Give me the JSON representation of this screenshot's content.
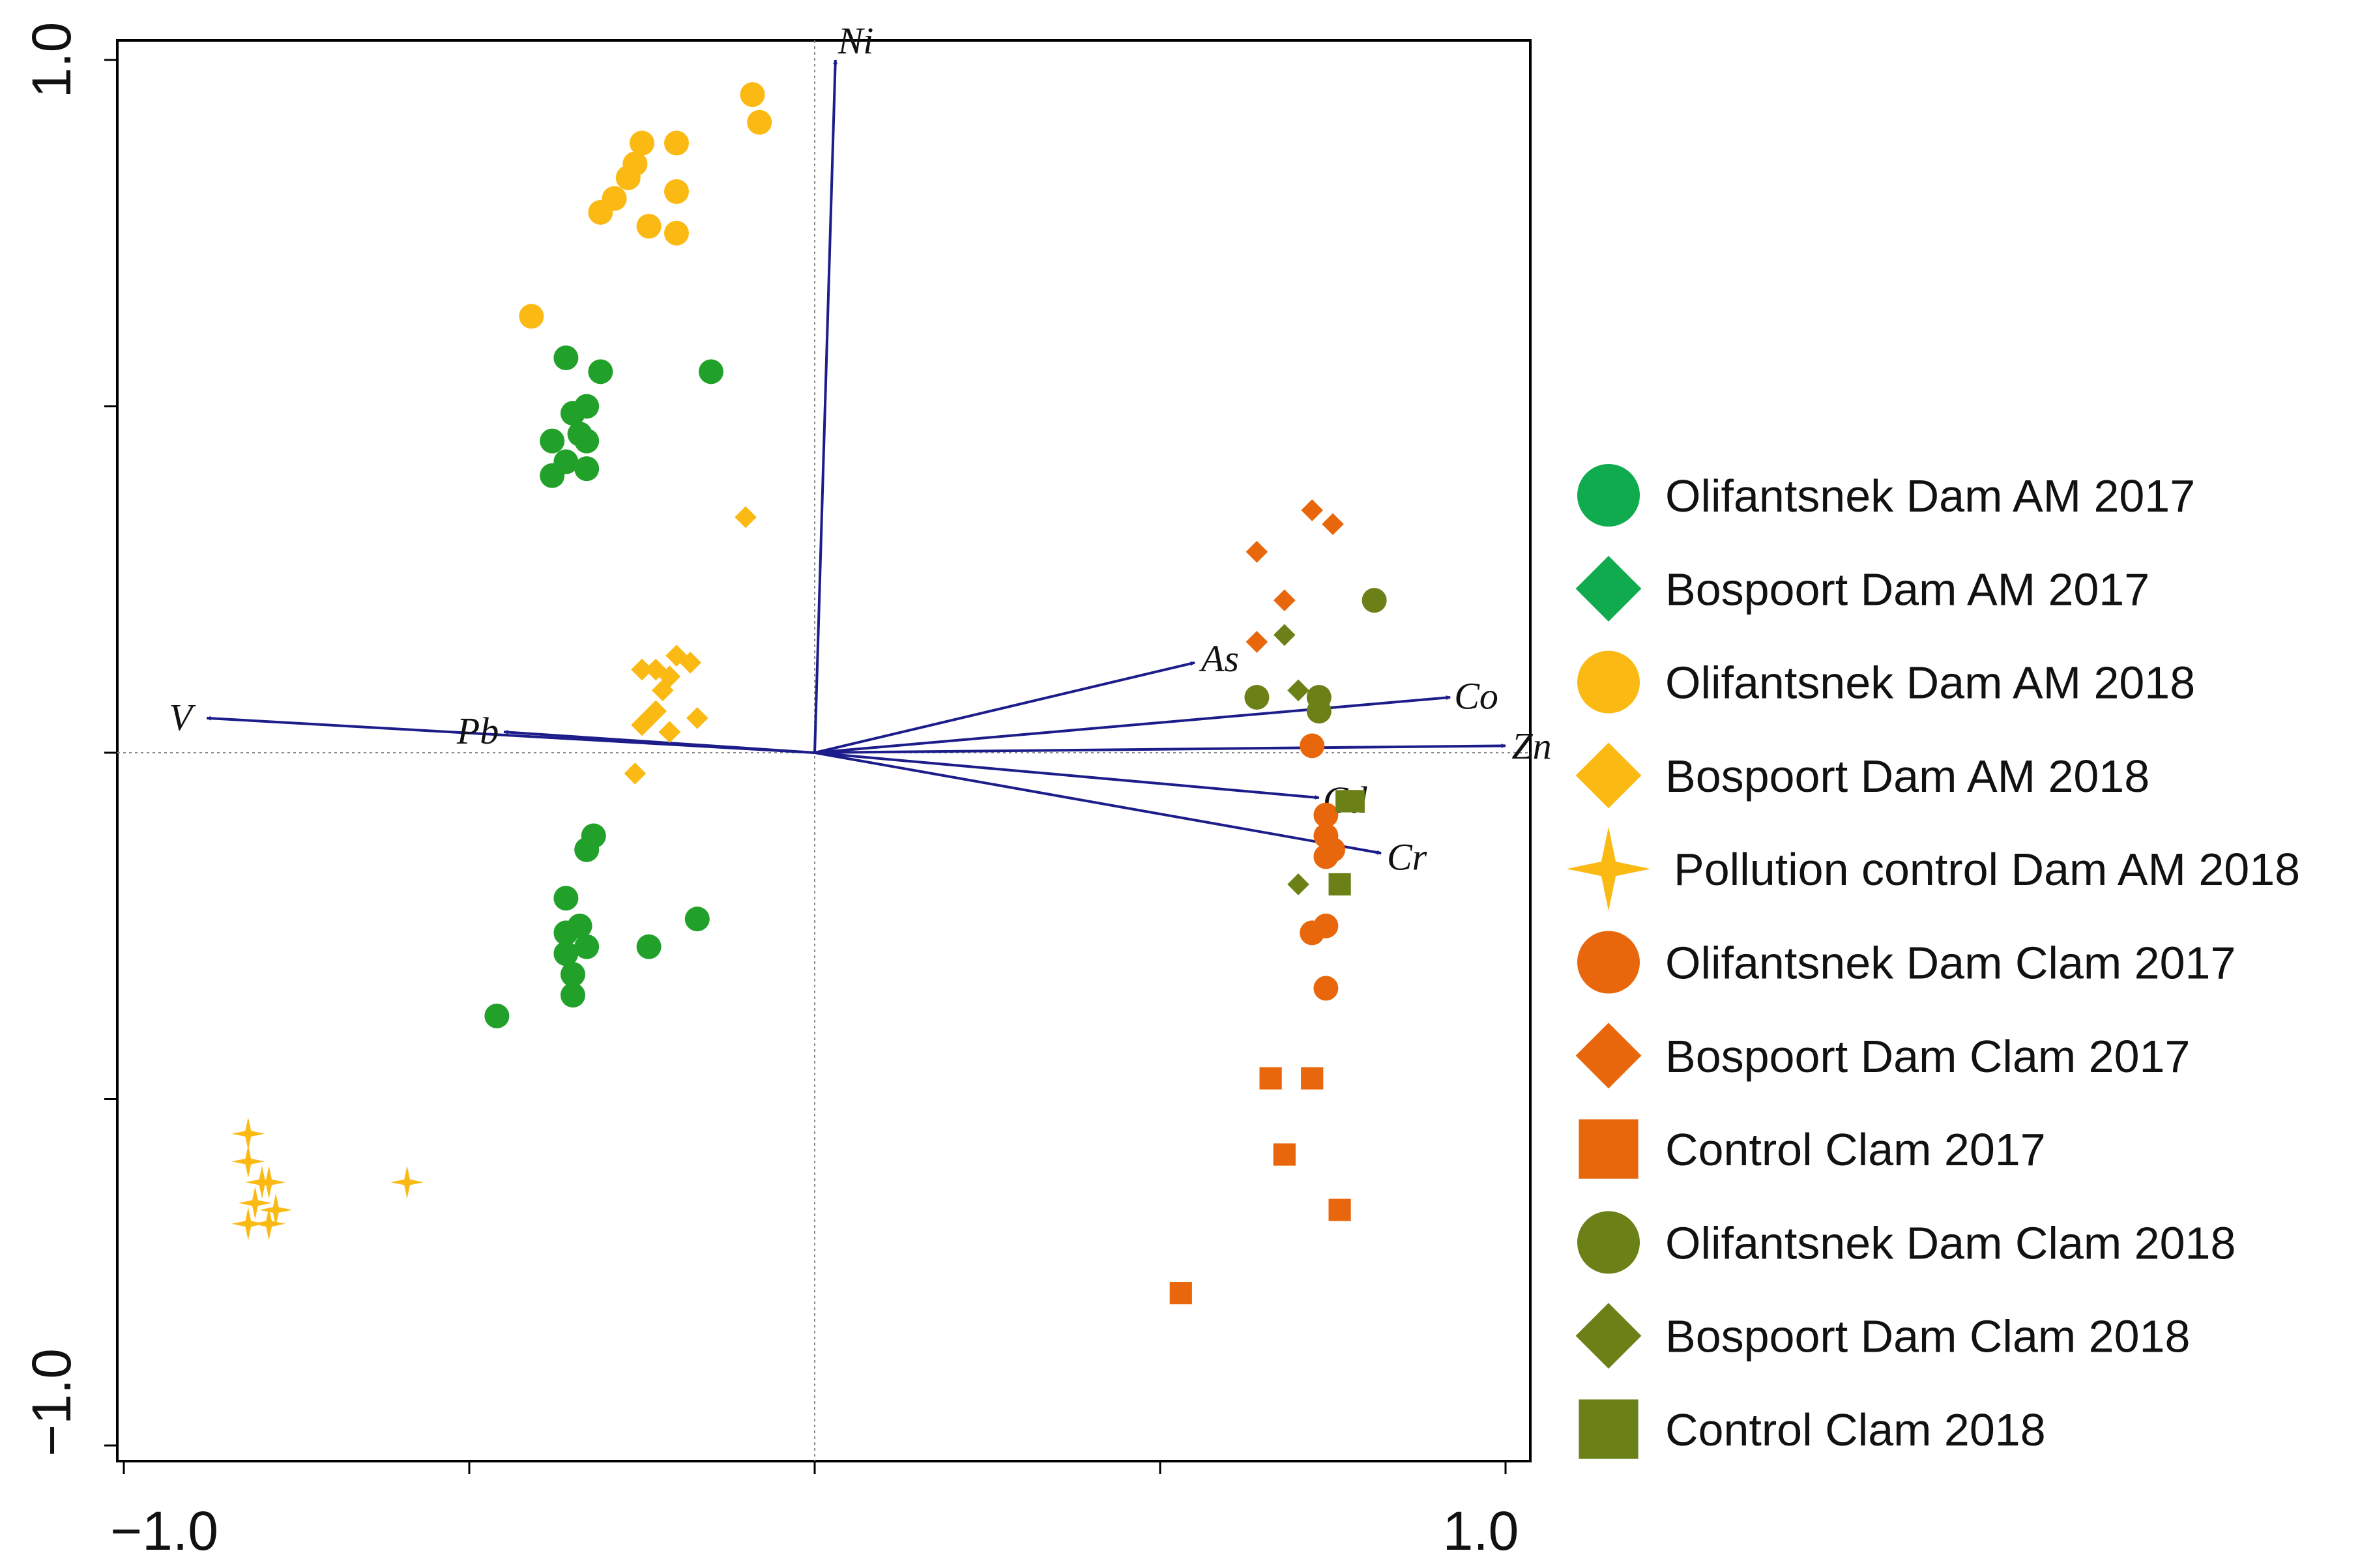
{
  "chart_data": {
    "type": "scatter",
    "title": "",
    "xlabel": "",
    "ylabel": "",
    "xlim": [
      -1.0,
      1.0
    ],
    "ylim": [
      -1.0,
      1.0
    ],
    "x_tick_labels": [
      "−1.0",
      "1.0"
    ],
    "y_tick_labels": [
      "−1.0",
      "1.0"
    ],
    "reference_lines": "dotted at x=0 and y=0",
    "vectors": [
      {
        "name": "Ni",
        "x": 0.03,
        "y": 1.0
      },
      {
        "name": "V",
        "x": -0.88,
        "y": 0.05
      },
      {
        "name": "Pb",
        "x": -0.45,
        "y": 0.03
      },
      {
        "name": "As",
        "x": 0.55,
        "y": 0.13
      },
      {
        "name": "Co",
        "x": 0.92,
        "y": 0.08
      },
      {
        "name": "Zn",
        "x": 1.0,
        "y": 0.01
      },
      {
        "name": "Cd",
        "x": 0.73,
        "y": -0.065
      },
      {
        "name": "Cr",
        "x": 0.82,
        "y": -0.145
      }
    ],
    "series": [
      {
        "name": "Olifantsnek Dam AM 2017",
        "marker": "circle",
        "color": "#22a12a",
        "points": [
          [
            -0.36,
            0.57
          ],
          [
            -0.31,
            0.55
          ],
          [
            -0.35,
            0.49
          ],
          [
            -0.33,
            0.5
          ],
          [
            -0.34,
            0.46
          ],
          [
            -0.38,
            0.45
          ],
          [
            -0.33,
            0.45
          ],
          [
            -0.36,
            0.42
          ],
          [
            -0.38,
            0.4
          ],
          [
            -0.33,
            0.41
          ],
          [
            -0.15,
            0.55
          ],
          [
            -0.32,
            -0.12
          ],
          [
            -0.33,
            -0.14
          ],
          [
            -0.36,
            -0.21
          ],
          [
            -0.34,
            -0.25
          ],
          [
            -0.36,
            -0.26
          ],
          [
            -0.33,
            -0.28
          ],
          [
            -0.36,
            -0.29
          ],
          [
            -0.35,
            -0.32
          ],
          [
            -0.35,
            -0.35
          ],
          [
            -0.24,
            -0.28
          ],
          [
            -0.17,
            -0.24
          ],
          [
            -0.46,
            -0.38
          ]
        ]
      },
      {
        "name": "Olifantsnek Dam AM 2018",
        "marker": "circle",
        "color": "#fbb914",
        "points": [
          [
            -0.09,
            0.95
          ],
          [
            -0.08,
            0.91
          ],
          [
            -0.25,
            0.88
          ],
          [
            -0.2,
            0.88
          ],
          [
            -0.26,
            0.85
          ],
          [
            -0.27,
            0.83
          ],
          [
            -0.2,
            0.81
          ],
          [
            -0.24,
            0.76
          ],
          [
            -0.2,
            0.75
          ],
          [
            -0.29,
            0.8
          ],
          [
            -0.31,
            0.78
          ],
          [
            -0.41,
            0.63
          ]
        ]
      },
      {
        "name": "Bospoort Dam AM 2018",
        "marker": "diamond",
        "color": "#fbb914",
        "points": [
          [
            -0.1,
            0.34
          ],
          [
            -0.2,
            0.14
          ],
          [
            -0.18,
            0.13
          ],
          [
            -0.23,
            0.12
          ],
          [
            -0.25,
            0.12
          ],
          [
            -0.21,
            0.11
          ],
          [
            -0.22,
            0.09
          ],
          [
            -0.23,
            0.06
          ],
          [
            -0.24,
            0.05
          ],
          [
            -0.25,
            0.04
          ],
          [
            -0.21,
            0.03
          ],
          [
            -0.17,
            0.05
          ],
          [
            -0.26,
            -0.03
          ]
        ]
      },
      {
        "name": "Pollution control Dam AM 2018",
        "marker": "star",
        "color": "#fbb914",
        "points": [
          [
            -0.82,
            -0.55
          ],
          [
            -0.82,
            -0.59
          ],
          [
            -0.8,
            -0.62
          ],
          [
            -0.81,
            -0.65
          ],
          [
            -0.79,
            -0.68
          ],
          [
            -0.78,
            -0.66
          ],
          [
            -0.82,
            -0.68
          ],
          [
            -0.79,
            -0.62
          ],
          [
            -0.59,
            -0.62
          ]
        ]
      },
      {
        "name": "Olifantsnek Dam Clam 2017",
        "marker": "circle",
        "color": "#e8670c",
        "points": [
          [
            0.72,
            0.01
          ],
          [
            0.74,
            -0.09
          ],
          [
            0.74,
            -0.12
          ],
          [
            0.75,
            -0.14
          ],
          [
            0.74,
            -0.15
          ],
          [
            0.74,
            -0.25
          ],
          [
            0.72,
            -0.26
          ],
          [
            0.74,
            -0.34
          ]
        ]
      },
      {
        "name": "Bospoort Dam Clam 2017",
        "marker": "diamond",
        "color": "#e8670c",
        "points": [
          [
            0.72,
            0.35
          ],
          [
            0.75,
            0.33
          ],
          [
            0.64,
            0.29
          ],
          [
            0.68,
            0.22
          ],
          [
            0.64,
            0.16
          ]
        ]
      },
      {
        "name": "Control Clam 2017",
        "marker": "square",
        "color": "#e8670c",
        "points": [
          [
            0.66,
            -0.47
          ],
          [
            0.72,
            -0.47
          ],
          [
            0.68,
            -0.58
          ],
          [
            0.76,
            -0.66
          ],
          [
            0.53,
            -0.78
          ]
        ]
      },
      {
        "name": "Olifantsnek Dam Clam 2018",
        "marker": "circle",
        "color": "#6b8118",
        "points": [
          [
            0.81,
            0.22
          ],
          [
            0.64,
            0.08
          ],
          [
            0.73,
            0.08
          ],
          [
            0.73,
            0.06
          ]
        ]
      },
      {
        "name": "Bospoort Dam Clam 2018",
        "marker": "diamond",
        "color": "#6b8118",
        "points": [
          [
            0.68,
            0.17
          ],
          [
            0.7,
            0.09
          ],
          [
            0.7,
            -0.19
          ]
        ]
      },
      {
        "name": "Control Clam 2018",
        "marker": "square",
        "color": "#6b8118",
        "points": [
          [
            0.78,
            -0.07
          ],
          [
            0.77,
            -0.07
          ],
          [
            0.76,
            -0.19
          ]
        ]
      }
    ],
    "legend": {
      "placement": "right",
      "entries": [
        {
          "label": "Olifantsnek Dam AM 2017",
          "marker": "circle",
          "color": "#0fab4e"
        },
        {
          "label": "Bospoort Dam AM 2017",
          "marker": "diamond",
          "color": "#0fab4e"
        },
        {
          "label": "Olifantsnek Dam AM 2018",
          "marker": "circle",
          "color": "#fbb914"
        },
        {
          "label": "Bospoort Dam AM 2018",
          "marker": "diamond",
          "color": "#fbb914"
        },
        {
          "label": "Pollution control Dam AM 2018",
          "marker": "star",
          "color": "#fbb914"
        },
        {
          "label": "Olifantsnek Dam Clam 2017",
          "marker": "circle",
          "color": "#e8670c"
        },
        {
          "label": "Bospoort Dam Clam 2017",
          "marker": "diamond",
          "color": "#e8670c"
        },
        {
          "label": "Control Clam 2017",
          "marker": "square",
          "color": "#e8670c"
        },
        {
          "label": "Olifantsnek Dam Clam 2018",
          "marker": "circle",
          "color": "#6b8118"
        },
        {
          "label": "Bospoort Dam Clam 2018",
          "marker": "diamond",
          "color": "#6b8118"
        },
        {
          "label": "Control Clam 2018",
          "marker": "square",
          "color": "#6b8118"
        }
      ]
    },
    "vector_color": "#1c1c8a"
  }
}
